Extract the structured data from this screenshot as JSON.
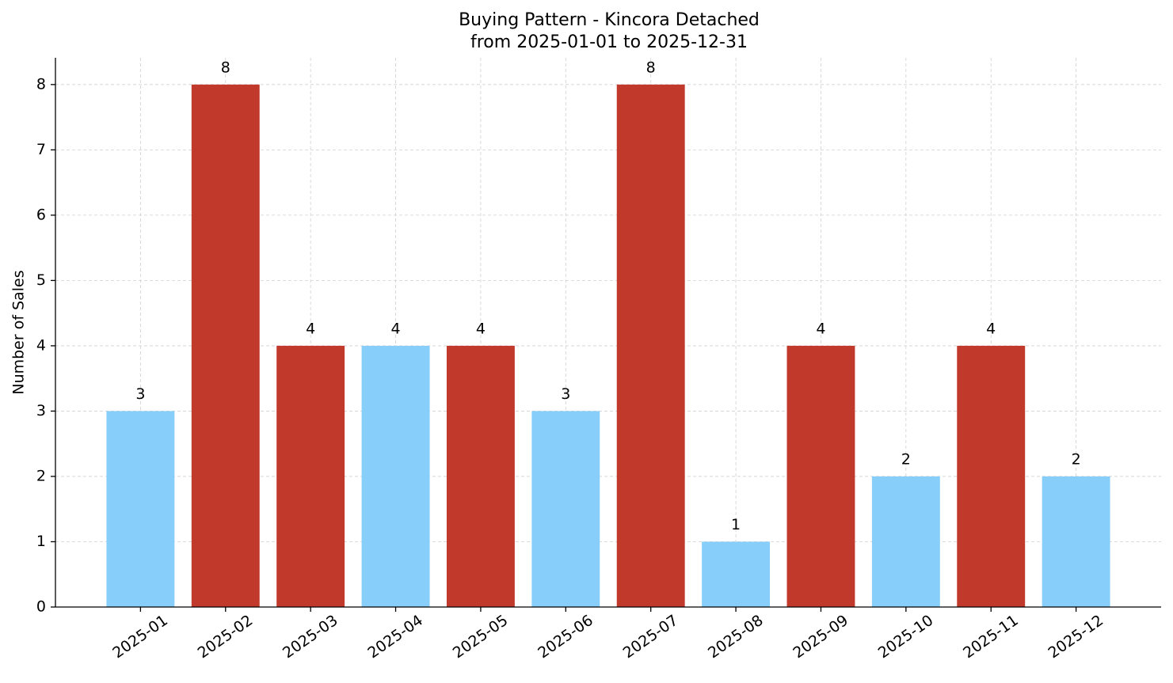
{
  "chart_data": {
    "type": "bar",
    "title": "Buying Pattern - Kincora Detached",
    "subtitle": "from 2025-01-01 to 2025-12-31",
    "y_label": "Number of Sales",
    "categories": [
      "2025-01",
      "2025-02",
      "2025-03",
      "2025-04",
      "2025-05",
      "2025-06",
      "2025-07",
      "2025-08",
      "2025-09",
      "2025-10",
      "2025-11",
      "2025-12"
    ],
    "values": [
      3,
      8,
      4,
      4,
      4,
      3,
      8,
      1,
      4,
      2,
      4,
      2
    ],
    "colors": [
      "#87cefa",
      "#c0392b",
      "#c0392b",
      "#87cefa",
      "#c0392b",
      "#87cefa",
      "#c0392b",
      "#87cefa",
      "#c0392b",
      "#87cefa",
      "#c0392b",
      "#87cefa"
    ],
    "ylim": [
      0,
      8.41
    ],
    "yticks": [
      0,
      1,
      2,
      3,
      4,
      5,
      6,
      7,
      8
    ],
    "grid": true
  }
}
